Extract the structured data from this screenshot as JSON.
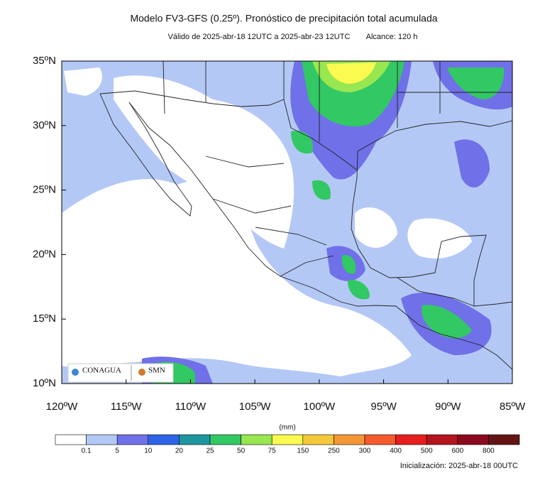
{
  "header": {
    "title": "Modelo FV3-GFS (0.25º). Pronóstico de precipitación total acumulada",
    "valid": "Válido de 2025-abr-18 12UTC a 2025-abr-23 12UTC",
    "range": "Alcance: 120 h"
  },
  "map": {
    "xlim": [
      -120,
      -85
    ],
    "ylim": [
      10,
      35
    ],
    "xticks": [
      {
        "value": -120,
        "label": "120ºW"
      },
      {
        "value": -115,
        "label": "115ºW"
      },
      {
        "value": -110,
        "label": "110ºW"
      },
      {
        "value": -105,
        "label": "105ºW"
      },
      {
        "value": -100,
        "label": "100ºW"
      },
      {
        "value": -95,
        "label": "95ºW"
      },
      {
        "value": -90,
        "label": "90ºW"
      },
      {
        "value": -85,
        "label": "85ºW"
      }
    ],
    "yticks": [
      {
        "value": 10,
        "label": "10ºN"
      },
      {
        "value": 15,
        "label": "15ºN"
      },
      {
        "value": 20,
        "label": "20ºN"
      },
      {
        "value": 25,
        "label": "25ºN"
      },
      {
        "value": 30,
        "label": "30ºN"
      },
      {
        "value": 35,
        "label": "35ºN"
      }
    ]
  },
  "logos": {
    "conagua": "CONAGUA",
    "smn": "SMN"
  },
  "colorbar": {
    "unit": "(mm)",
    "levels": [
      0.1,
      5,
      10,
      20,
      25,
      50,
      75,
      150,
      250,
      300,
      400,
      500,
      600,
      800
    ],
    "colors": [
      "#ffffff",
      "#b4c8f5",
      "#7070e8",
      "#2e64e8",
      "#1e96a0",
      "#32c864",
      "#98e650",
      "#fafa50",
      "#f5c83c",
      "#f59637",
      "#f55a2d",
      "#e61e1e",
      "#b4141e",
      "#8c0a1e",
      "#641414"
    ]
  },
  "footer": {
    "init": "Inicialización: 2025-abr-18 00UTC"
  }
}
